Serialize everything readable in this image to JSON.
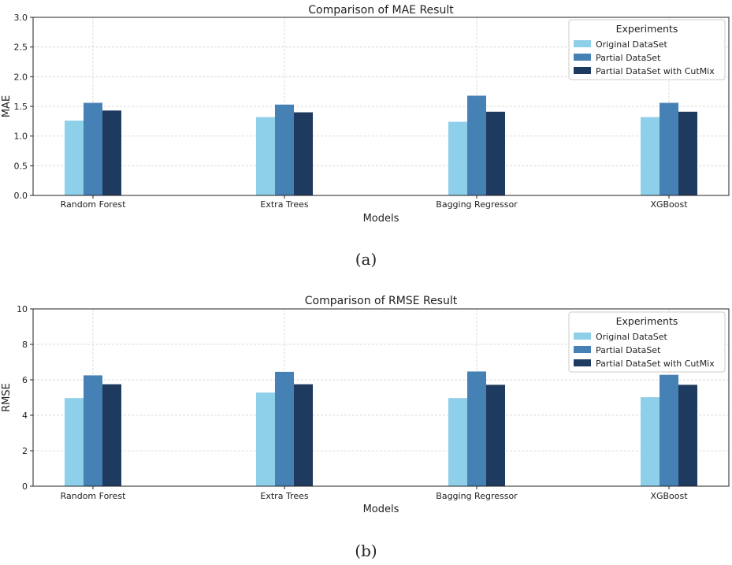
{
  "colors": {
    "series": [
      "#8ecfea",
      "#4681b6",
      "#1e3a5f"
    ]
  },
  "chart_data": [
    {
      "type": "bar",
      "title": "Comparison of MAE Result",
      "xlabel": "Models",
      "ylabel": "MAE",
      "ylim": [
        0,
        3.0
      ],
      "yticks": [
        "0.0",
        "0.5",
        "1.0",
        "1.5",
        "2.0",
        "2.5",
        "3.0"
      ],
      "grid": true,
      "legend_title": "Experiments",
      "legend_position": "top-right",
      "categories": [
        "Random Forest",
        "Extra Trees",
        "Bagging Regressor",
        "XGBoost"
      ],
      "series": [
        {
          "name": "Original DataSet",
          "values": [
            1.26,
            1.32,
            1.24,
            1.32
          ]
        },
        {
          "name": "Partial DataSet",
          "values": [
            1.56,
            1.53,
            1.68,
            1.56
          ]
        },
        {
          "name": "Partial DataSet with CutMix",
          "values": [
            1.43,
            1.4,
            1.41,
            1.41
          ]
        }
      ],
      "caption": "(a)"
    },
    {
      "type": "bar",
      "title": "Comparison of RMSE Result",
      "xlabel": "Models",
      "ylabel": "RMSE",
      "ylim": [
        0,
        10
      ],
      "yticks": [
        "0",
        "2",
        "4",
        "6",
        "8",
        "10"
      ],
      "grid": true,
      "legend_title": "Experiments",
      "legend_position": "top-right",
      "categories": [
        "Random Forest",
        "Extra Trees",
        "Bagging Regressor",
        "XGBoost"
      ],
      "series": [
        {
          "name": "Original DataSet",
          "values": [
            4.97,
            5.28,
            4.97,
            5.02
          ]
        },
        {
          "name": "Partial DataSet",
          "values": [
            6.25,
            6.45,
            6.47,
            6.28
          ]
        },
        {
          "name": "Partial DataSet with CutMix",
          "values": [
            5.75,
            5.75,
            5.72,
            5.72
          ]
        }
      ],
      "caption": "(b)"
    }
  ]
}
